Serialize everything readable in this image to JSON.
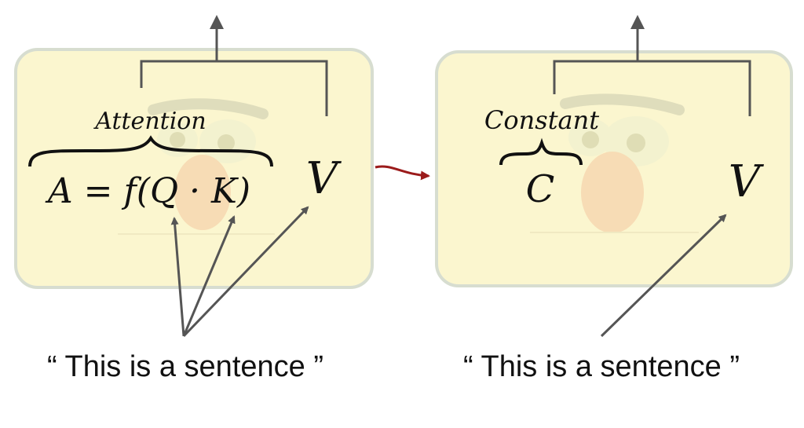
{
  "left_panel": {
    "brace_label": "Attention",
    "formula": "A = f(Q · K)",
    "value_symbol": "V",
    "sentence": "“ This is a sentence ”"
  },
  "right_panel": {
    "brace_label": "Constant",
    "formula": "C",
    "value_symbol": "V",
    "sentence": "“ This is a sentence ”"
  },
  "colors": {
    "panel_fill": "#fbf6cf",
    "panel_border": "#d7ddd0",
    "arrow": "#555555",
    "transition_arrow": "#9b1b1b",
    "face_nose": "#f4c7a0",
    "face_eye": "#eef0cf"
  }
}
